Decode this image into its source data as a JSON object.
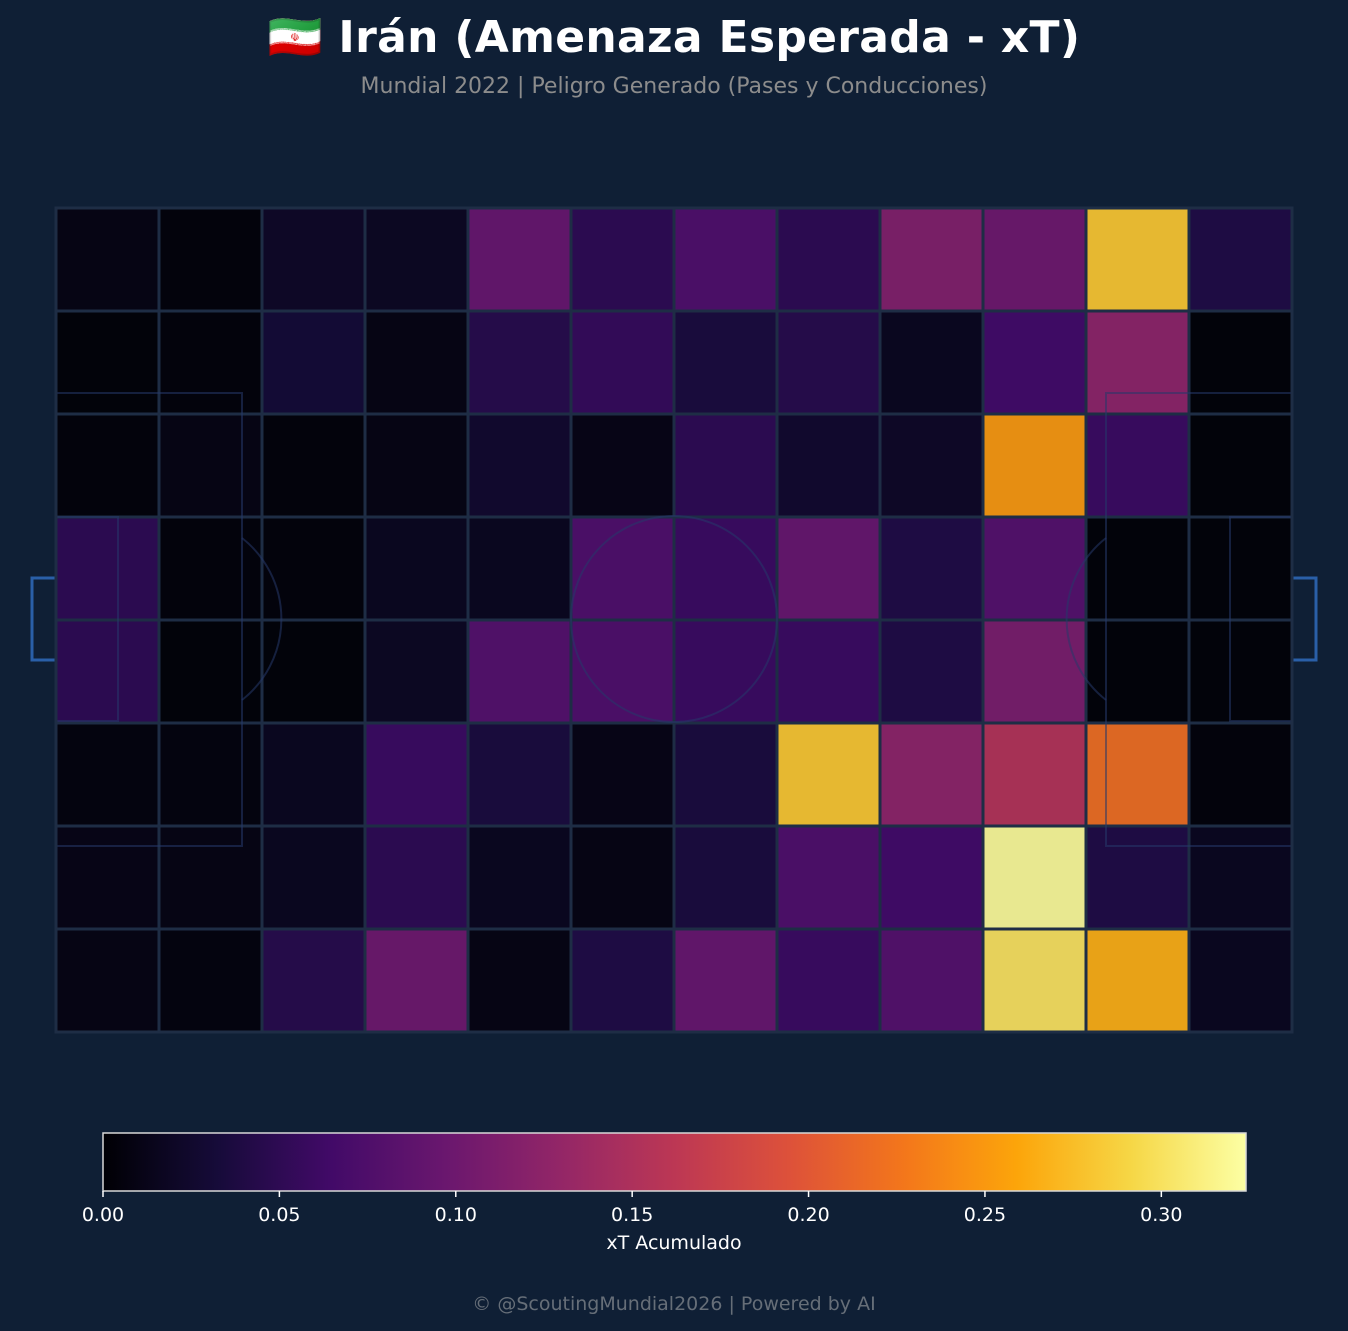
{
  "header": {
    "title": "🇮🇷 Irán (Amenaza Esperada - xT)",
    "subtitle": "Mundial 2022 | Peligro Generado (Pases y Conducciones)"
  },
  "chart_data": {
    "type": "heatmap",
    "colormap": "inferno",
    "rows": 8,
    "cols": 12,
    "values": [
      [
        0.008,
        0.003,
        0.02,
        0.018,
        0.095,
        0.05,
        0.075,
        0.05,
        0.115,
        0.1,
        0.28,
        0.04
      ],
      [
        0.002,
        0.003,
        0.03,
        0.008,
        0.045,
        0.055,
        0.035,
        0.045,
        0.015,
        0.065,
        0.125,
        0.002
      ],
      [
        0.003,
        0.008,
        0.003,
        0.008,
        0.025,
        0.01,
        0.05,
        0.025,
        0.02,
        0.25,
        0.06,
        0.002
      ],
      [
        0.05,
        0.003,
        0.003,
        0.015,
        0.015,
        0.075,
        0.06,
        0.095,
        0.04,
        0.08,
        0.002,
        0.002
      ],
      [
        0.05,
        0.002,
        0.002,
        0.018,
        0.08,
        0.075,
        0.06,
        0.06,
        0.04,
        0.11,
        0.002,
        0.002
      ],
      [
        0.005,
        0.005,
        0.015,
        0.06,
        0.035,
        0.01,
        0.035,
        0.28,
        0.125,
        0.155,
        0.22,
        0.003
      ],
      [
        0.01,
        0.008,
        0.015,
        0.05,
        0.015,
        0.008,
        0.035,
        0.075,
        0.065,
        0.32,
        0.04,
        0.015
      ],
      [
        0.008,
        0.005,
        0.045,
        0.1,
        0.008,
        0.04,
        0.095,
        0.06,
        0.08,
        0.3,
        0.265,
        0.015
      ]
    ],
    "vmin": 0.0,
    "vmax": 0.324,
    "colorbar": {
      "ticks": [
        "0.00",
        "0.05",
        "0.10",
        "0.15",
        "0.20",
        "0.25",
        "0.30"
      ],
      "label": "xT Acumulado"
    },
    "colors": {
      "background": "#0f1f35",
      "pitch_lines": "#1e2d45",
      "goal_lines": "#2a5fa8"
    }
  },
  "footer": {
    "credit": "© @ScoutingMundial2026 | Powered by AI"
  }
}
